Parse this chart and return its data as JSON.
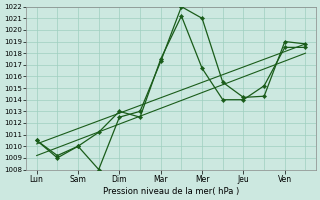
{
  "xlabel": "Pression niveau de la mer( hPa )",
  "x_labels": [
    "Lun",
    "Sam",
    "Dim",
    "Mar",
    "Mer",
    "Jeu",
    "Ven"
  ],
  "ylim": [
    1008,
    1022
  ],
  "yticks": [
    1008,
    1009,
    1010,
    1011,
    1012,
    1013,
    1014,
    1015,
    1016,
    1017,
    1018,
    1019,
    1020,
    1021,
    1022
  ],
  "bg_color": "#cce8e0",
  "grid_color": "#9fcfbf",
  "line_color": "#1a5c1a",
  "line1_x": [
    0,
    1,
    2,
    3,
    4,
    5,
    6,
    7,
    8,
    9,
    10,
    11,
    12,
    13
  ],
  "line1_y": [
    1010.5,
    1009.0,
    1010.0,
    1008.0,
    1012.5,
    1013.0,
    1017.3,
    1022.0,
    1021.0,
    1015.5,
    1014.2,
    1014.3,
    1019.0,
    1018.8
  ],
  "line2_x": [
    0,
    1,
    2,
    3,
    4,
    5,
    6,
    7,
    8,
    9,
    10,
    11,
    12,
    13
  ],
  "line2_y": [
    1010.5,
    1009.2,
    1010.0,
    1011.2,
    1013.0,
    1012.5,
    1017.5,
    1021.2,
    1016.7,
    1014.0,
    1014.0,
    1015.2,
    1018.5,
    1018.5
  ],
  "trend1_x": [
    0,
    13
  ],
  "trend1_y": [
    1010.2,
    1018.8
  ],
  "trend2_x": [
    0,
    13
  ],
  "trend2_y": [
    1009.2,
    1018.0
  ],
  "major_x_positions": [
    0,
    2,
    4,
    6,
    8,
    10,
    12
  ],
  "xlim_min": -0.5,
  "xlim_max": 13.5
}
